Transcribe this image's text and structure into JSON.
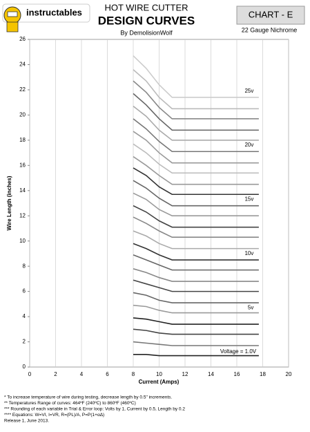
{
  "header": {
    "logo": "instructables",
    "title": "HOT WIRE CUTTER",
    "subtitle": "DESIGN CURVES",
    "author": "By DemolisionWolf",
    "chart_id": "CHART   - E",
    "gauge": "22 Gauge Nichrome"
  },
  "chart_data": {
    "type": "line",
    "x_label": "Current (Amps)",
    "y_label": "Wire Length (inches)",
    "xlim": [
      0,
      20
    ],
    "ylim": [
      0,
      26
    ],
    "xticks": [
      0,
      2,
      4,
      6,
      8,
      10,
      12,
      14,
      16,
      18,
      20
    ],
    "yticks": [
      0,
      2,
      4,
      6,
      8,
      10,
      12,
      14,
      16,
      18,
      20,
      22,
      24,
      26
    ],
    "grid": true,
    "x": [
      8,
      9,
      10,
      11,
      17.7
    ],
    "series": [
      {
        "color": "#222222",
        "values": [
          1.0,
          1.0,
          0.9,
          0.9,
          0.9
        ]
      },
      {
        "color": "#777777",
        "values": [
          2.0,
          1.9,
          1.8,
          1.7,
          1.7
        ]
      },
      {
        "color": "#444444",
        "values": [
          3.0,
          2.9,
          2.7,
          2.6,
          2.6
        ]
      },
      {
        "color": "#222222",
        "values": [
          3.9,
          3.8,
          3.6,
          3.4,
          3.4
        ]
      },
      {
        "color": "#999999",
        "values": [
          4.9,
          4.8,
          4.5,
          4.3,
          4.3
        ]
      },
      {
        "color": "#666666",
        "values": [
          5.9,
          5.7,
          5.3,
          5.1,
          5.1
        ]
      },
      {
        "color": "#444444",
        "values": [
          6.9,
          6.6,
          6.3,
          6.0,
          6.0
        ]
      },
      {
        "color": "#888888",
        "values": [
          7.8,
          7.5,
          7.1,
          6.8,
          6.8
        ]
      },
      {
        "color": "#666666",
        "values": [
          8.9,
          8.5,
          8.1,
          7.7,
          7.7
        ]
      },
      {
        "color": "#333333",
        "values": [
          9.8,
          9.4,
          8.9,
          8.5,
          8.5
        ]
      },
      {
        "color": "#aaaaaa",
        "values": [
          10.8,
          10.4,
          9.8,
          9.4,
          9.4
        ]
      },
      {
        "color": "#888888",
        "values": [
          11.9,
          11.4,
          10.8,
          10.3,
          10.3
        ]
      },
      {
        "color": "#444444",
        "values": [
          12.8,
          12.3,
          11.6,
          11.1,
          11.1
        ]
      },
      {
        "color": "#999999",
        "values": [
          13.8,
          13.3,
          12.5,
          12.0,
          12.0
        ]
      },
      {
        "color": "#666666",
        "values": [
          14.8,
          14.2,
          13.4,
          12.8,
          12.8
        ]
      },
      {
        "color": "#333333",
        "values": [
          15.8,
          15.2,
          14.3,
          13.7,
          13.7
        ]
      },
      {
        "color": "#999999",
        "values": [
          16.7,
          16.0,
          15.2,
          14.5,
          14.5
        ]
      },
      {
        "color": "#bbbbbb",
        "values": [
          17.7,
          17.0,
          16.1,
          15.4,
          15.4
        ]
      },
      {
        "color": "#999999",
        "values": [
          18.7,
          18.0,
          17.0,
          16.2,
          16.2
        ]
      },
      {
        "color": "#777777",
        "values": [
          19.7,
          18.9,
          17.9,
          17.1,
          17.1
        ]
      },
      {
        "color": "#aaaaaa",
        "values": [
          20.7,
          19.9,
          18.8,
          18.0,
          18.0
        ]
      },
      {
        "color": "#666666",
        "values": [
          21.7,
          20.8,
          19.7,
          18.8,
          18.8
        ]
      },
      {
        "color": "#888888",
        "values": [
          22.7,
          21.8,
          20.6,
          19.7,
          19.7
        ]
      },
      {
        "color": "#bbbbbb",
        "values": [
          23.6,
          22.7,
          21.4,
          20.5,
          20.5
        ]
      },
      {
        "color": "#cccccc",
        "values": [
          24.7,
          23.7,
          22.4,
          21.4,
          21.4
        ]
      }
    ],
    "annotations": [
      {
        "text": "25v",
        "x": 17.3,
        "y": 21.9
      },
      {
        "text": "20v",
        "x": 17.3,
        "y": 17.6
      },
      {
        "text": "15v",
        "x": 17.3,
        "y": 13.3
      },
      {
        "text": "10v",
        "x": 17.3,
        "y": 9.0
      },
      {
        "text": "5v",
        "x": 17.3,
        "y": 4.7
      },
      {
        "text": "Voltage = 1.0V",
        "x": 17.5,
        "y": 1.2
      }
    ]
  },
  "footnotes": [
    "*      To increase temperature of wire during testing, decrease length by 0.5\" increments.",
    "**     Temperatures Range of curves: 464ºF (240ºC) to 860ºF (460ºC)",
    "***    Rounding of each variable in Trial & Error loop: Volts by 1, Current by 0.5, Length by 0.2",
    "****  Equations: W=VI, I=VR, R=(PL)/A, P=P(1+αΔ)",
    "Release 1, June 2013."
  ]
}
